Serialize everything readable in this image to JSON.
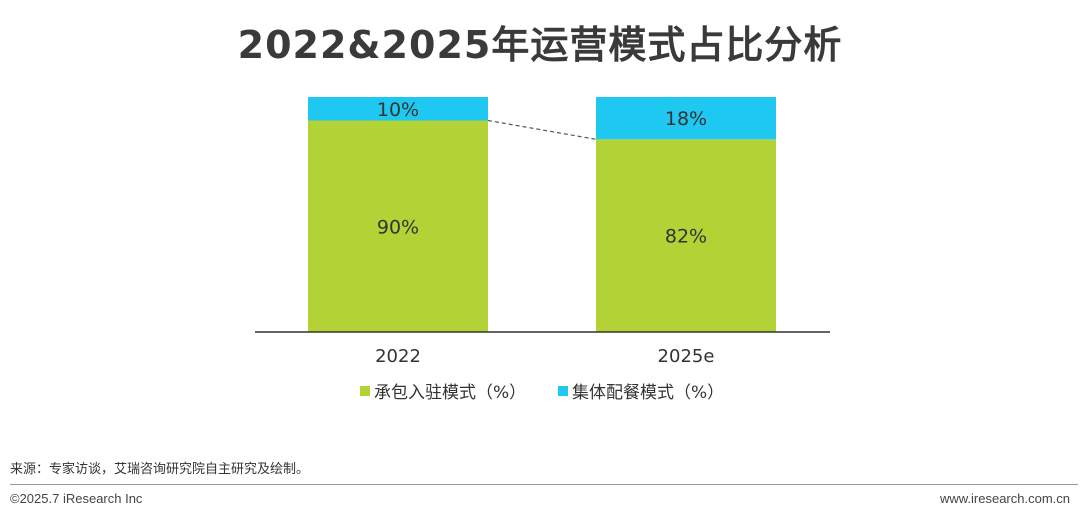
{
  "chart_data": {
    "type": "bar",
    "stacked": true,
    "percent": true,
    "title": "2022&2025年运营模式占比分析",
    "categories": [
      "2022",
      "2025e"
    ],
    "series": [
      {
        "name": "承包入驻模式（%）",
        "values": [
          90,
          82
        ],
        "color": "#b2d235"
      },
      {
        "name": "集体配餐模式（%）",
        "values": [
          10,
          18
        ],
        "color": "#1ec8f0"
      }
    ],
    "data_labels": {
      "series_0": [
        "90%",
        "82%"
      ],
      "series_1": [
        "10%",
        "18%"
      ]
    },
    "ylim": [
      0,
      100
    ],
    "grid": false,
    "legend": "bottom",
    "connector_line": true
  },
  "source": "来源：专家访谈，艾瑞咨询研究院自主研究及绘制。",
  "footer": {
    "copyright": "©2025.7 iResearch Inc",
    "site": "www.iresearch.com.cn"
  }
}
